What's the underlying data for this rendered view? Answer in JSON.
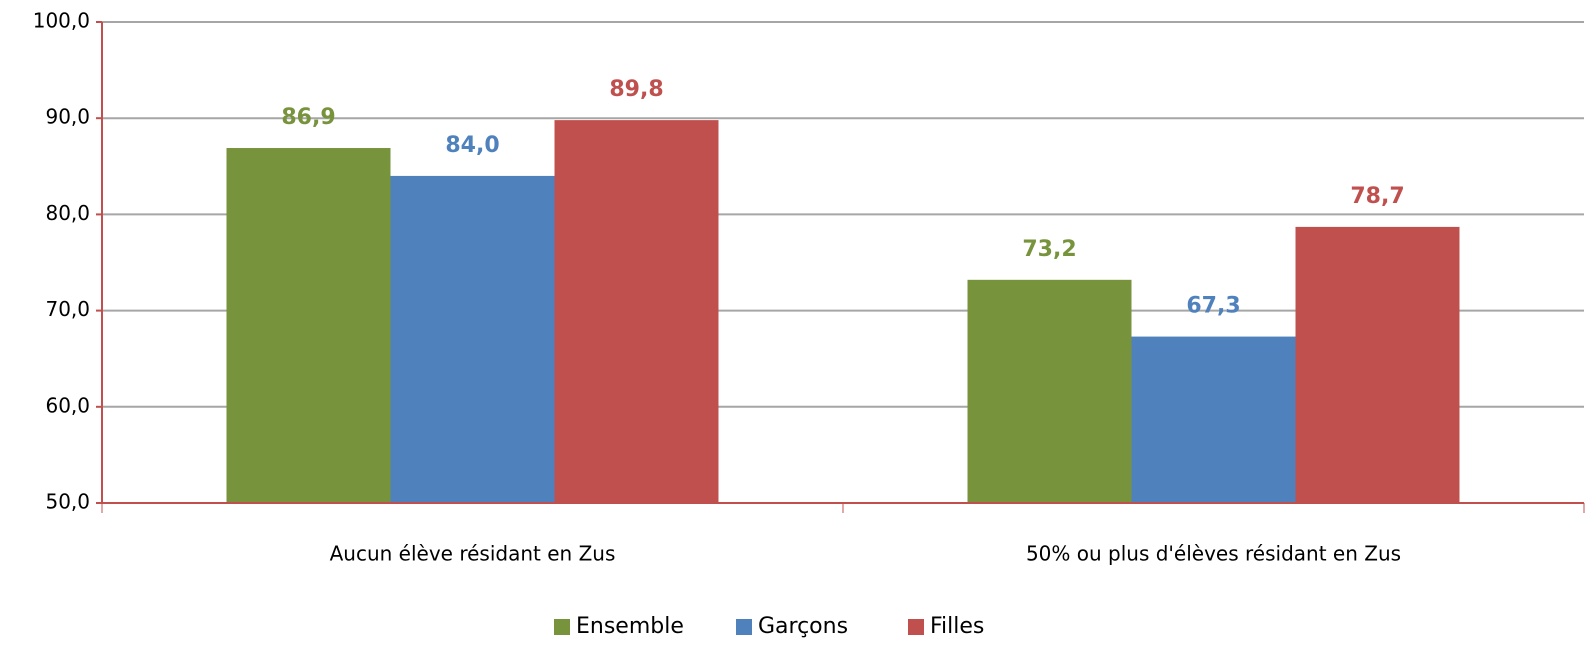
{
  "chart_data": {
    "type": "bar",
    "categories": [
      "Aucun élève résidant en Zus",
      "50% ou plus d'élèves résidant en Zus"
    ],
    "series": [
      {
        "name": "Ensemble",
        "color": "#77933c",
        "values": [
          86.9,
          73.2
        ],
        "value_labels": [
          "86,9",
          "73,2"
        ]
      },
      {
        "name": "Garçons",
        "color": "#4f81bd",
        "values": [
          84.0,
          67.3
        ],
        "value_labels": [
          "84,0",
          "67,3"
        ]
      },
      {
        "name": "Filles",
        "color": "#c0504d",
        "values": [
          89.8,
          78.7
        ],
        "value_labels": [
          "89,8",
          "78,7"
        ]
      }
    ],
    "ylim": [
      50,
      100
    ],
    "yticks": [
      {
        "value": 50,
        "label": "50,0"
      },
      {
        "value": 60,
        "label": "60,0"
      },
      {
        "value": 70,
        "label": "70,0"
      },
      {
        "value": 80,
        "label": "80,0"
      },
      {
        "value": 90,
        "label": "90,0"
      },
      {
        "value": 100,
        "label": "100,0"
      }
    ],
    "grid": true,
    "legend": "bottom"
  }
}
